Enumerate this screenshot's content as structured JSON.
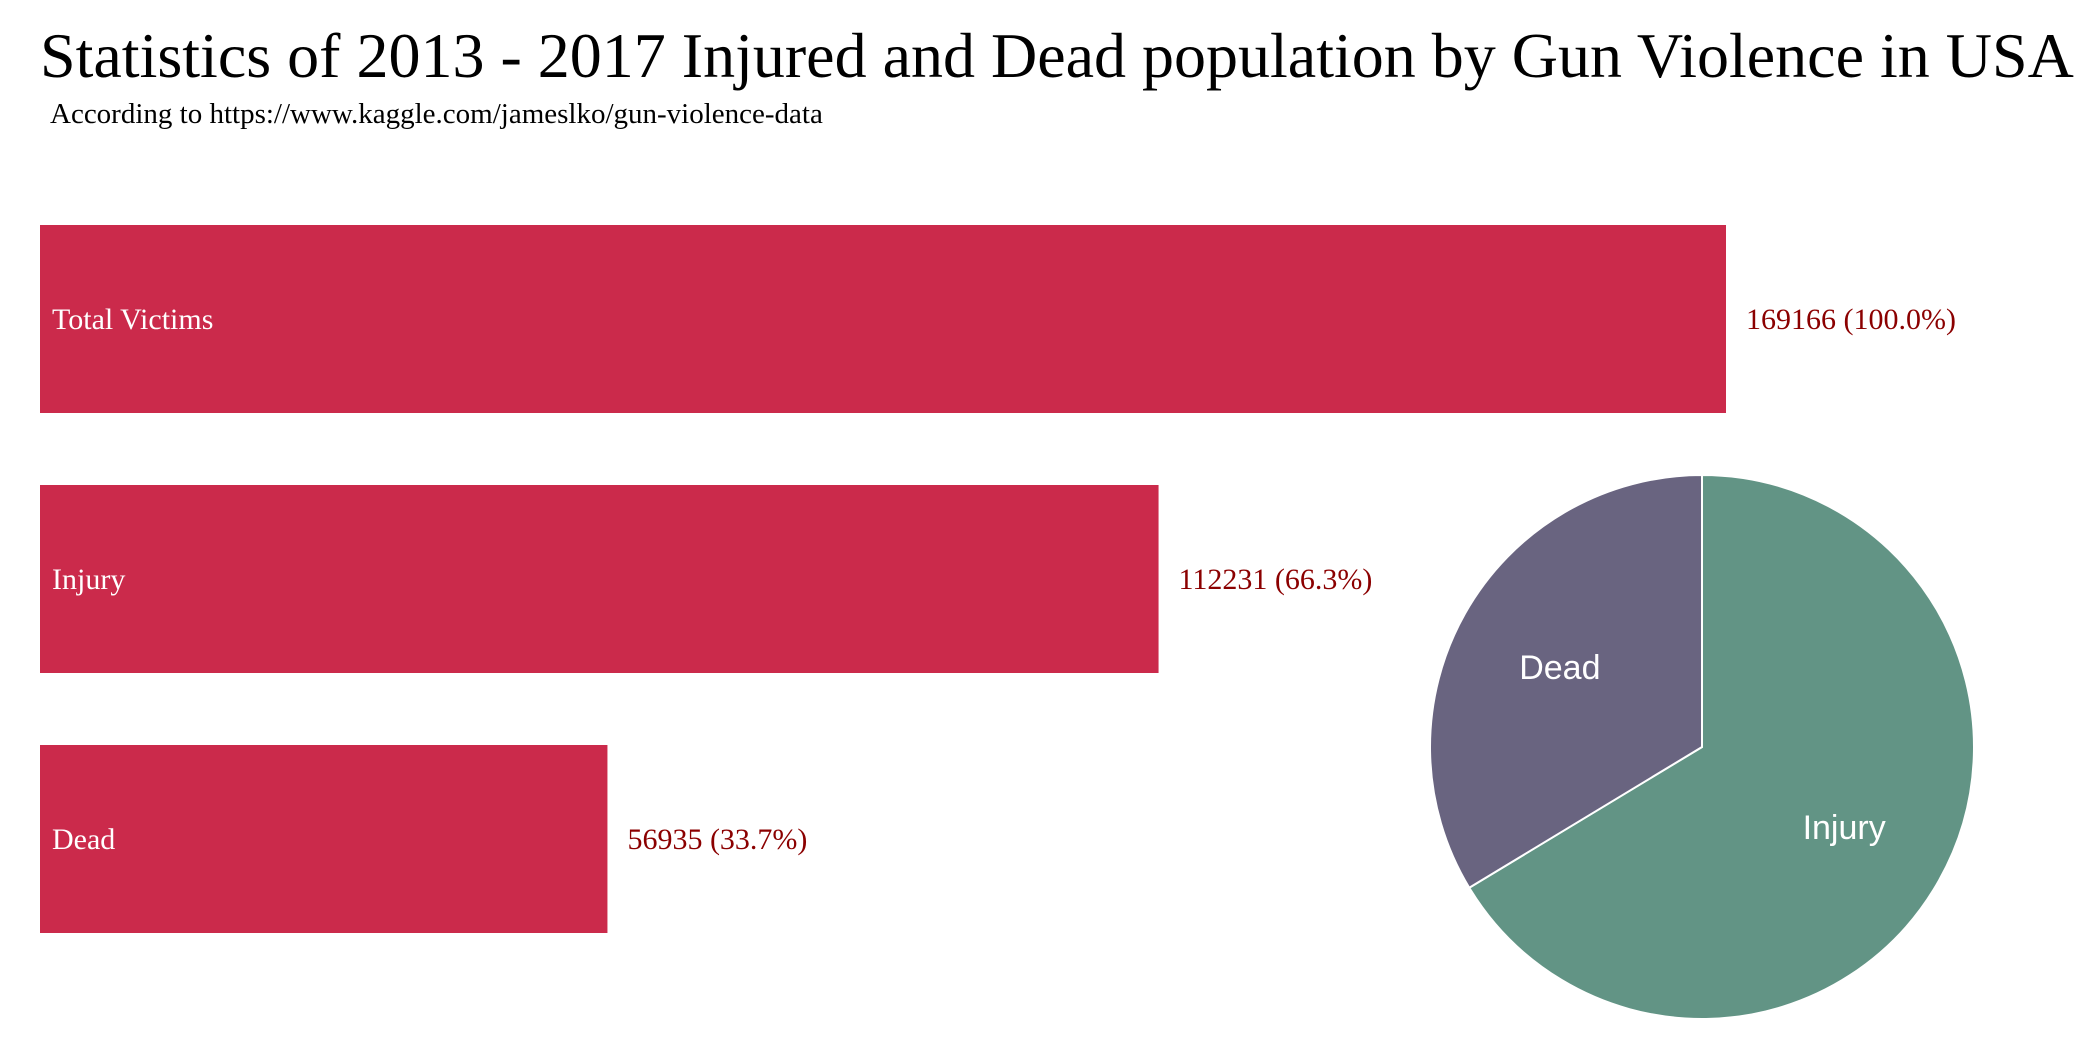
{
  "colors": {
    "bar": "#cb2a4b",
    "bar_text": "#ffffff",
    "value_text": "#8b0000",
    "pie_injury": "#629485",
    "pie_dead": "#696480",
    "pie_stroke": "#ffffff",
    "pie_text": "#ffffff"
  },
  "chart_data": [
    {
      "type": "bar",
      "orientation": "horizontal",
      "title": "Statistics of 2013 - 2017 Injured and Dead population by Gun Violence in USA",
      "subtitle": "According to https://www.kaggle.com/jameslko/gun-violence-data",
      "categories": [
        "Total Victims",
        "Injury",
        "Dead"
      ],
      "values": [
        169166,
        112231,
        56935
      ],
      "value_labels": [
        "169166 (100.0%)",
        "112231 (66.3%)",
        "56935 (33.7%)"
      ],
      "xlim": [
        0,
        169166
      ],
      "grid": false
    },
    {
      "type": "pie",
      "slices": [
        {
          "label": "Injury",
          "value": 112231
        },
        {
          "label": "Dead",
          "value": 56935
        }
      ]
    }
  ]
}
